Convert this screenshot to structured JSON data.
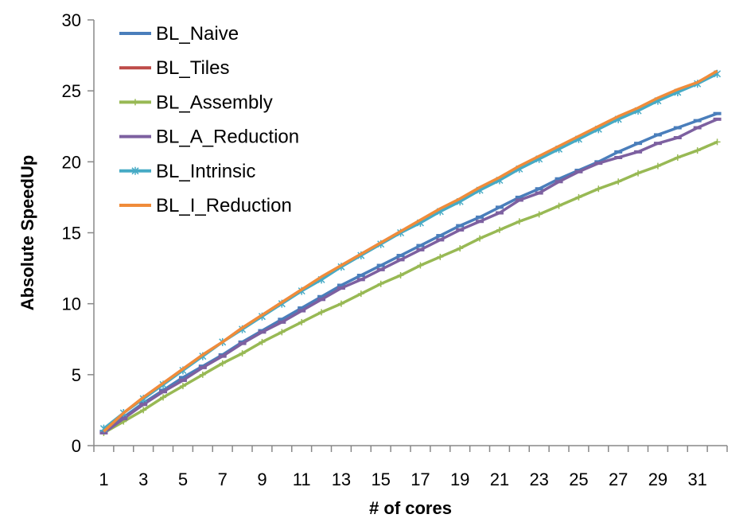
{
  "chart_data": {
    "type": "line",
    "xlabel": "# of cores",
    "ylabel": "Absolute SpeedUp",
    "ylim": [
      0,
      30
    ],
    "yticks": [
      0,
      5,
      10,
      15,
      20,
      25,
      30
    ],
    "xticks": [
      1,
      3,
      5,
      7,
      9,
      11,
      13,
      15,
      17,
      19,
      21,
      23,
      25,
      27,
      29,
      31
    ],
    "xlim": [
      0.5,
      32.5
    ],
    "grid": false,
    "legend": "top-left",
    "x": [
      1,
      2,
      3,
      4,
      5,
      6,
      7,
      8,
      9,
      10,
      11,
      12,
      13,
      14,
      15,
      16,
      17,
      18,
      19,
      20,
      21,
      22,
      23,
      24,
      25,
      26,
      27,
      28,
      29,
      30,
      31,
      32
    ],
    "series": [
      {
        "name": "BL_Naive",
        "color": "#4A7EBB",
        "marker": "dash",
        "values": [
          1.0,
          2.0,
          3.0,
          3.9,
          4.8,
          5.6,
          6.4,
          7.3,
          8.1,
          8.9,
          9.7,
          10.5,
          11.3,
          12.0,
          12.7,
          13.4,
          14.1,
          14.8,
          15.5,
          16.1,
          16.8,
          17.5,
          18.1,
          18.8,
          19.4,
          20.0,
          20.7,
          21.3,
          21.9,
          22.4,
          22.9,
          23.4
        ]
      },
      {
        "name": "BL_Tiles",
        "color": "#BE4B48",
        "marker": "none",
        "values": [
          1.0,
          2.3,
          3.4,
          4.4,
          5.4,
          6.4,
          7.3,
          8.3,
          9.2,
          10.1,
          11.0,
          11.8,
          12.7,
          13.5,
          14.3,
          15.1,
          15.8,
          16.6,
          17.3,
          18.1,
          18.8,
          19.6,
          20.3,
          21.0,
          21.7,
          22.4,
          23.1,
          23.7,
          24.4,
          25.0,
          25.6,
          26.3
        ]
      },
      {
        "name": "BL_Assembly",
        "color": "#98B954",
        "marker": "plus",
        "values": [
          0.9,
          1.7,
          2.5,
          3.4,
          4.2,
          5.0,
          5.8,
          6.5,
          7.3,
          8.0,
          8.7,
          9.4,
          10.0,
          10.7,
          11.4,
          12.0,
          12.7,
          13.3,
          13.9,
          14.6,
          15.2,
          15.8,
          16.3,
          16.9,
          17.5,
          18.1,
          18.6,
          19.2,
          19.7,
          20.3,
          20.8,
          21.4
        ]
      },
      {
        "name": "BL_A_Reduction",
        "color": "#7D60A0",
        "marker": "dash",
        "values": [
          0.9,
          1.9,
          2.9,
          3.8,
          4.6,
          5.5,
          6.3,
          7.2,
          8.0,
          8.7,
          9.5,
          10.3,
          11.1,
          11.7,
          12.4,
          13.1,
          13.8,
          14.5,
          15.2,
          15.8,
          16.4,
          17.3,
          17.8,
          18.6,
          19.3,
          19.9,
          20.3,
          20.7,
          21.3,
          21.7,
          22.4,
          23.0
        ]
      },
      {
        "name": "BL_Intrinsic",
        "color": "#46AAC5",
        "marker": "star",
        "values": [
          1.2,
          2.3,
          3.3,
          4.3,
          5.3,
          6.3,
          7.3,
          8.2,
          9.1,
          10.0,
          10.9,
          11.7,
          12.6,
          13.4,
          14.2,
          15.0,
          15.7,
          16.5,
          17.2,
          18.0,
          18.7,
          19.5,
          20.2,
          20.9,
          21.6,
          22.3,
          23.0,
          23.6,
          24.3,
          24.9,
          25.5,
          26.2
        ]
      },
      {
        "name": "BL_I_Reduction",
        "color": "#F08C3A",
        "marker": "none",
        "values": [
          1.0,
          2.3,
          3.4,
          4.4,
          5.4,
          6.4,
          7.3,
          8.3,
          9.2,
          10.1,
          11.0,
          11.9,
          12.7,
          13.5,
          14.3,
          15.1,
          15.9,
          16.7,
          17.4,
          18.2,
          18.9,
          19.7,
          20.4,
          21.1,
          21.8,
          22.5,
          23.2,
          23.8,
          24.5,
          25.1,
          25.6,
          26.4
        ]
      }
    ]
  }
}
